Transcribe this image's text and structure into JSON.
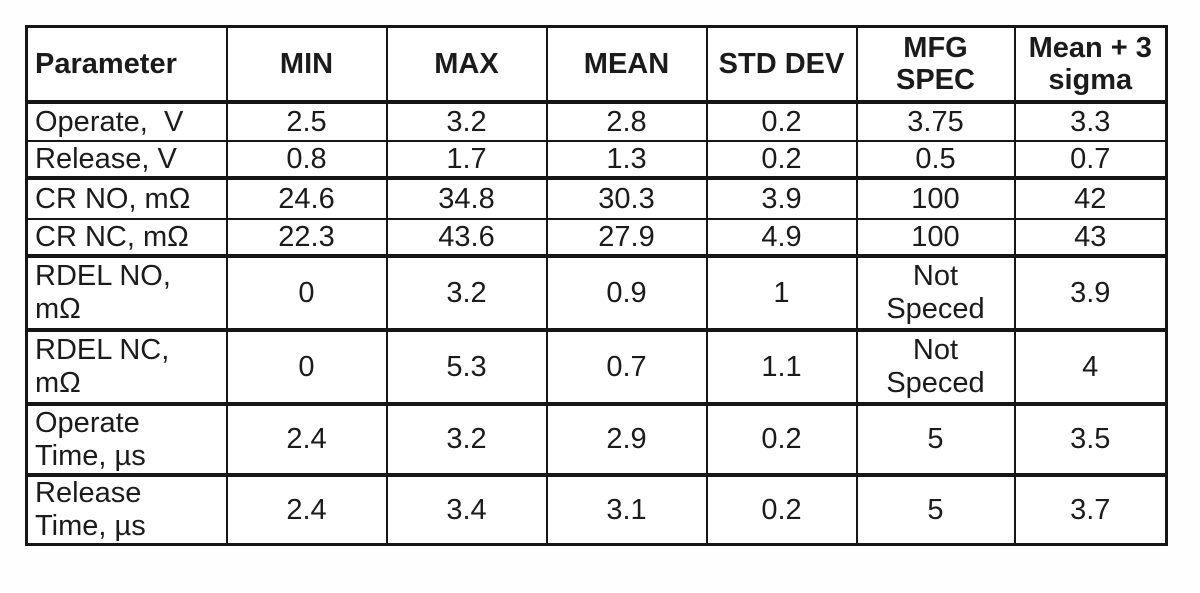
{
  "colors": {
    "background": "#ffffff",
    "border": "#161616",
    "text": "#1b1b1b"
  },
  "chart_data": {
    "type": "table",
    "columns": [
      "Parameter",
      "MIN",
      "MAX",
      "MEAN",
      "STD DEV",
      "MFG\nSPEC",
      "Mean + 3\nsigma"
    ],
    "rows": [
      [
        "Operate,  V",
        "2.5",
        "3.2",
        "2.8",
        "0.2",
        "3.75",
        "3.3"
      ],
      [
        "Release, V",
        "0.8",
        "1.7",
        "1.3",
        "0.2",
        "0.5",
        "0.7"
      ],
      [
        "CR NO, mΩ",
        "24.6",
        "34.8",
        "30.3",
        "3.9",
        "100",
        "42"
      ],
      [
        "CR NC, mΩ",
        "22.3",
        "43.6",
        "27.9",
        "4.9",
        "100",
        "43"
      ],
      [
        "RDEL NO,\nmΩ",
        "0",
        "3.2",
        "0.9",
        "1",
        "Not\nSpeced",
        "3.9"
      ],
      [
        "RDEL NC,\nmΩ",
        "0",
        "5.3",
        "0.7",
        "1.1",
        "Not\nSpeced",
        "4"
      ],
      [
        "Operate\nTime, µs",
        "2.4",
        "3.2",
        "2.9",
        "0.2",
        "5",
        "3.5"
      ],
      [
        "Release\nTime, µs",
        "2.4",
        "3.4",
        "3.1",
        "0.2",
        "5",
        "3.7"
      ]
    ]
  }
}
